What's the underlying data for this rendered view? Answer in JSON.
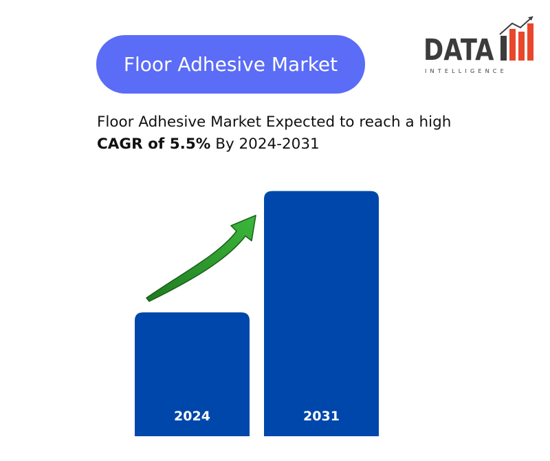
{
  "header": {
    "title": "Floor Adhesive Market"
  },
  "logo": {
    "word": "DATA",
    "sub": "INTELLIGENCE",
    "colors": {
      "text": "#3c3c3c",
      "bars": "#e8472b"
    }
  },
  "subtitle": {
    "line1": "Floor Adhesive Market Expected to reach a high",
    "bold": "CAGR of 5.5%",
    "rest": " By 2024-2031"
  },
  "chart_data": {
    "type": "bar",
    "categories": [
      "2024",
      "2031"
    ],
    "values": [
      1.0,
      1.98
    ],
    "ylim": [
      0,
      2.0
    ],
    "grid": false,
    "legend": "none",
    "annotations": [
      "growth-arrow"
    ],
    "colors": {
      "bar": "#0047ab",
      "arrow": "#2e9e2e",
      "arrow_outline": "#1a5f1a"
    }
  }
}
